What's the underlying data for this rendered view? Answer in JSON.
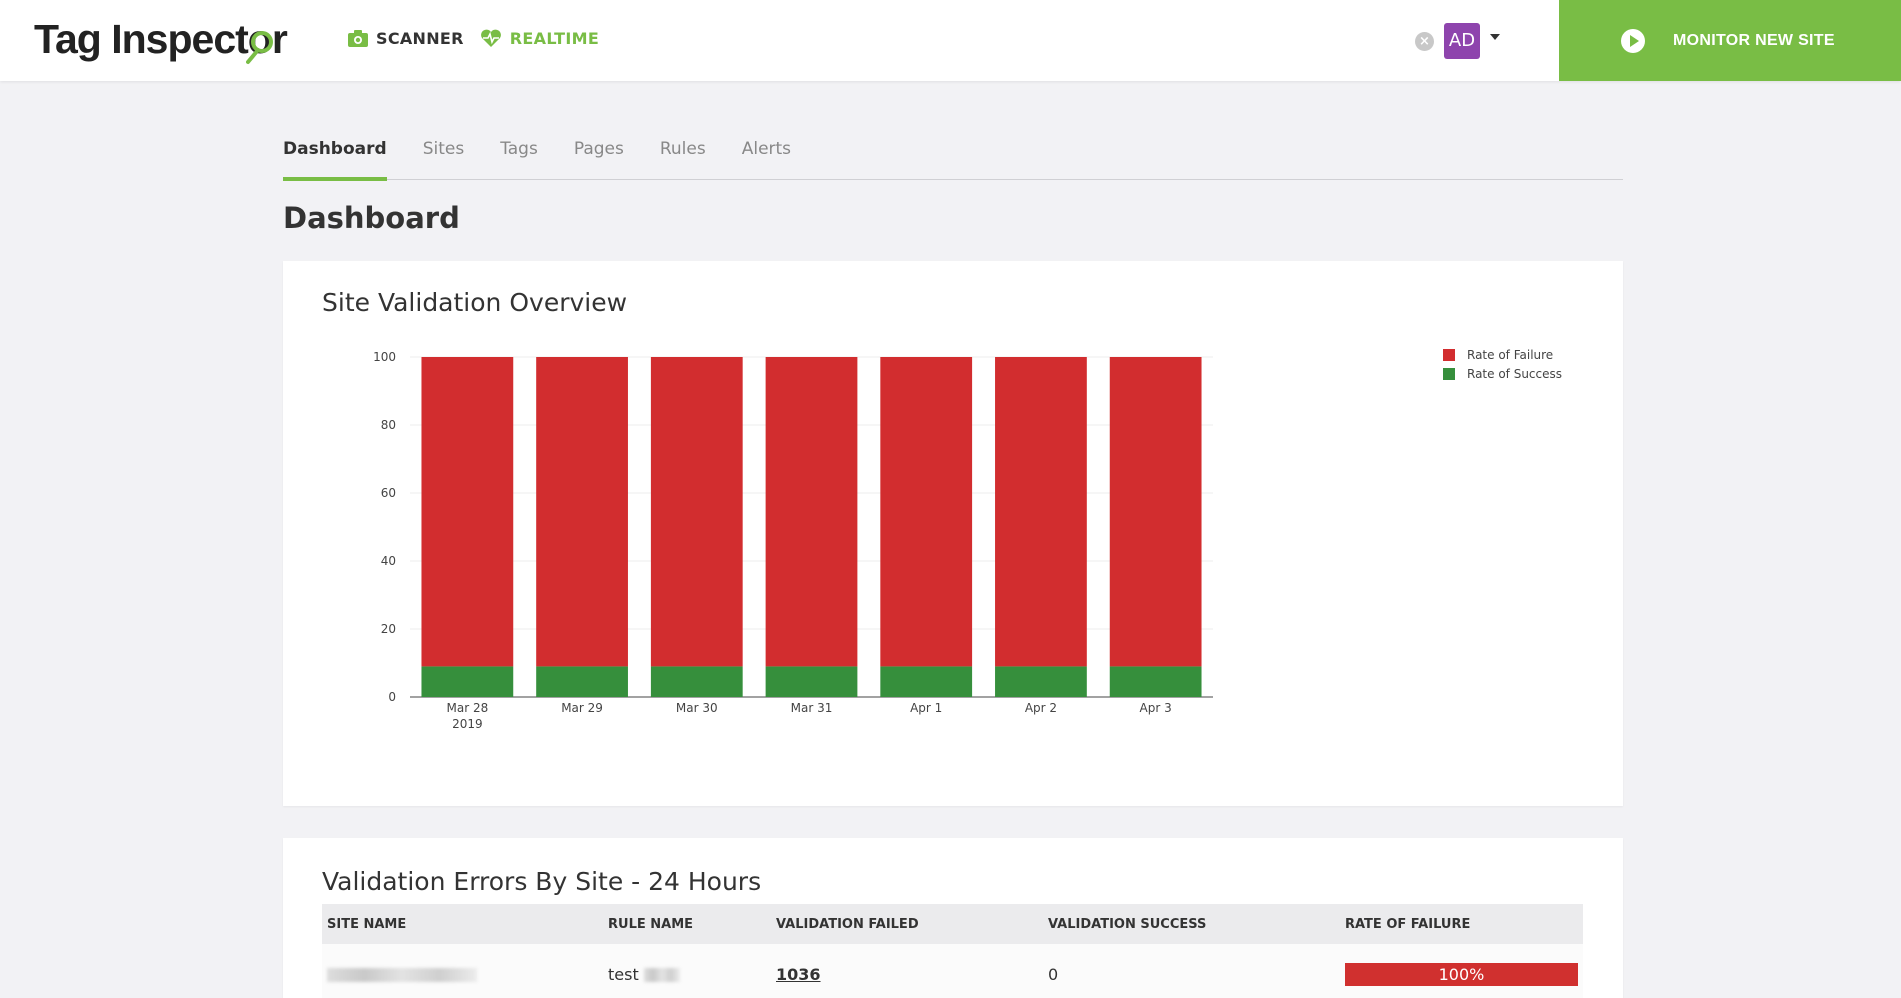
{
  "header": {
    "logo_part1": "Tag Inspect",
    "logo_o": "o",
    "logo_part2": "r",
    "nav": [
      {
        "label": "SCANNER",
        "icon": "camera-icon"
      },
      {
        "label": "REALTIME",
        "icon": "heartbeat-icon"
      }
    ],
    "user_initials": "AD",
    "monitor_button_label": "MONITOR NEW SITE"
  },
  "colors": {
    "accent": "#79bd45",
    "failure": "#d22d2f",
    "success": "#368f3c",
    "avatar": "#8e44ad"
  },
  "tabs": [
    {
      "label": "Dashboard",
      "active": true
    },
    {
      "label": "Sites",
      "active": false
    },
    {
      "label": "Tags",
      "active": false
    },
    {
      "label": "Pages",
      "active": false
    },
    {
      "label": "Rules",
      "active": false
    },
    {
      "label": "Alerts",
      "active": false
    }
  ],
  "page_title": "Dashboard",
  "overview": {
    "title": "Site Validation Overview"
  },
  "chart_data": {
    "type": "bar",
    "stacked": true,
    "categories": [
      "Mar 28",
      "Mar 29",
      "Mar 30",
      "Mar 31",
      "Apr 1",
      "Apr 2",
      "Apr 3"
    ],
    "category_sublabels": [
      "2019",
      "",
      "",
      "",
      "",
      "",
      ""
    ],
    "series": [
      {
        "name": "Rate of Success",
        "values": [
          9,
          9,
          9,
          9,
          9,
          9,
          9
        ]
      },
      {
        "name": "Rate of Failure",
        "values": [
          91,
          91,
          91,
          91,
          91,
          91,
          91
        ]
      }
    ],
    "ylim": [
      0,
      100
    ],
    "yticks": [
      0,
      20,
      40,
      60,
      80,
      100
    ],
    "grid": true,
    "legend_position": "top-right",
    "legend": [
      "Rate of Failure",
      "Rate of Success"
    ]
  },
  "errors_table": {
    "title": "Validation Errors By Site - 24 Hours",
    "columns": [
      "SITE NAME",
      "RULE NAME",
      "VALIDATION FAILED",
      "VALIDATION SUCCESS",
      "RATE OF FAILURE"
    ],
    "rows": [
      {
        "site_name": "",
        "rule_name": "test",
        "validation_failed": "1036",
        "validation_success": "0",
        "rate_of_failure": "100%"
      }
    ]
  }
}
